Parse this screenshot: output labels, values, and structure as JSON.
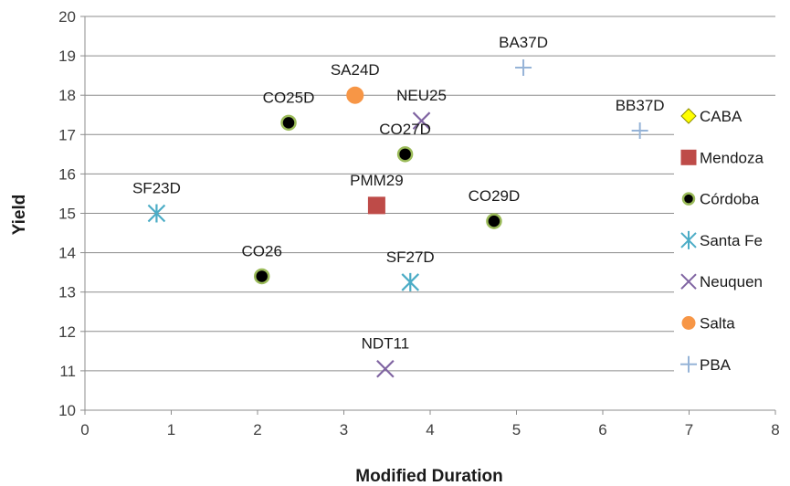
{
  "chart_data": {
    "type": "scatter",
    "title": "",
    "xlabel": "Modified Duration",
    "ylabel": "Yield",
    "xlim": [
      0,
      8
    ],
    "ylim": [
      10,
      20
    ],
    "xticks": [
      0,
      1,
      2,
      3,
      4,
      5,
      6,
      7,
      8
    ],
    "yticks": [
      10,
      11,
      12,
      13,
      14,
      15,
      16,
      17,
      18,
      19,
      20
    ],
    "grid": "horizontal",
    "legend_position": "right",
    "series": [
      {
        "name": "CABA",
        "marker": "diamond",
        "color": "#ffff00",
        "edge": "#8c8c00",
        "points": []
      },
      {
        "name": "Mendoza",
        "marker": "square",
        "color": "#be4b48",
        "edge": "#be4b48",
        "points": [
          {
            "label": "PMM29",
            "x": 3.38,
            "y": 15.2
          }
        ]
      },
      {
        "name": "Córdoba",
        "marker": "circle",
        "color": "#000000",
        "edge": "#9bbb59",
        "points": [
          {
            "label": "CO25D",
            "x": 2.36,
            "y": 17.3
          },
          {
            "label": "CO27D",
            "x": 3.71,
            "y": 16.5
          },
          {
            "label": "CO29D",
            "x": 4.74,
            "y": 14.8
          },
          {
            "label": "CO26",
            "x": 2.05,
            "y": 13.4
          }
        ]
      },
      {
        "name": "Santa Fe",
        "marker": "star",
        "color": "#4bacc6",
        "edge": "#4bacc6",
        "points": [
          {
            "label": "SF23D",
            "x": 0.83,
            "y": 15.0
          },
          {
            "label": "SF27D",
            "x": 3.77,
            "y": 13.25
          }
        ]
      },
      {
        "name": "Neuquen",
        "marker": "x",
        "color": "#8064a2",
        "edge": "#8064a2",
        "points": [
          {
            "label": "NEU25",
            "x": 3.9,
            "y": 17.35
          },
          {
            "label": "NDT11",
            "x": 3.48,
            "y": 11.05
          }
        ]
      },
      {
        "name": "Salta",
        "marker": "circle",
        "color": "#f79646",
        "edge": "#f79646",
        "points": [
          {
            "label": "SA24D",
            "x": 3.13,
            "y": 18.0
          }
        ]
      },
      {
        "name": "PBA",
        "marker": "plus",
        "color": "#95b3d7",
        "edge": "#95b3d7",
        "points": [
          {
            "label": "BA37D",
            "x": 5.08,
            "y": 18.7
          },
          {
            "label": "BB37D",
            "x": 6.43,
            "y": 17.1
          }
        ]
      }
    ]
  }
}
